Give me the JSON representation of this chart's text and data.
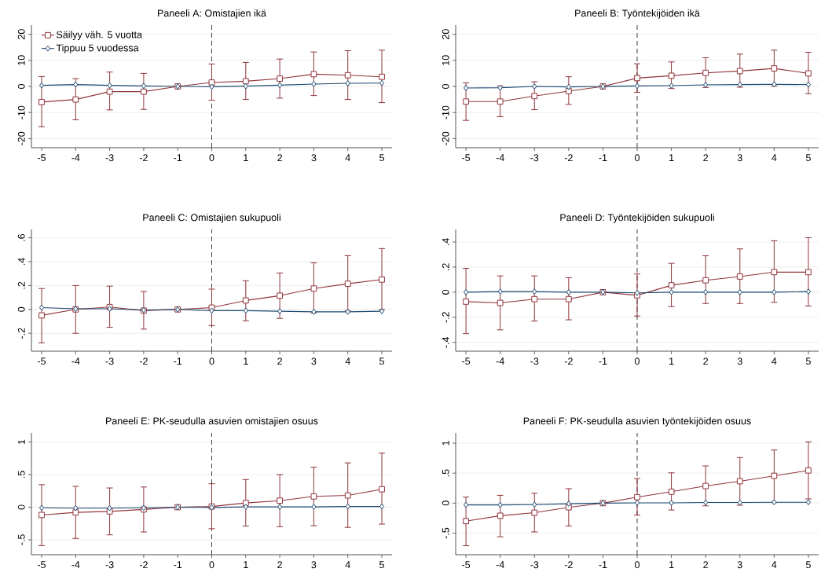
{
  "chart_data": [
    {
      "type": "line",
      "title": "Paneeli A: Omistajien ikä",
      "x": [
        -5,
        -4,
        -3,
        -2,
        -1,
        0,
        1,
        2,
        3,
        4,
        5
      ],
      "xlim": [
        -5.3,
        5.3
      ],
      "xticks": [
        -5,
        -4,
        -3,
        -2,
        -1,
        0,
        1,
        2,
        3,
        4,
        5
      ],
      "ylim": [
        -23.5,
        23.5
      ],
      "yticks": [
        -20,
        -10,
        0,
        10,
        20
      ],
      "grid": "y",
      "legend": "top left",
      "ref_lines": [
        {
          "axis": "x",
          "value": 0,
          "color": "#404040",
          "line_style": "dashed"
        }
      ],
      "series": [
        {
          "name": "Säilyy väh. 5 vuotta",
          "color": "#90353b",
          "marker": "square",
          "values": [
            -6,
            -5,
            -2,
            -2,
            0,
            1.5,
            2,
            3,
            4.7,
            4.3,
            3.7
          ],
          "errors": [
            [
              -15.5,
              3.8
            ],
            [
              -12.8,
              3
            ],
            [
              -9,
              5.5
            ],
            [
              -8.8,
              5
            ],
            null,
            [
              -5.3,
              8.6
            ],
            [
              -5,
              9.2
            ],
            [
              -4.5,
              10.5
            ],
            [
              -3.5,
              13.2
            ],
            [
              -5,
              13.7
            ],
            [
              -6.2,
              13.9
            ]
          ]
        },
        {
          "name": "Tippuu 5 vuodessa",
          "color": "#1a476f",
          "marker": "diamond",
          "values": [
            0.4,
            0.7,
            0.4,
            0.2,
            0,
            -0.1,
            0.1,
            0.5,
            0.9,
            1.2,
            1.3
          ]
        }
      ]
    },
    {
      "type": "line",
      "title": "Paneeli B: Työntekijöiden ikä",
      "x": [
        -5,
        -4,
        -3,
        -2,
        -1,
        0,
        1,
        2,
        3,
        4,
        5
      ],
      "xlim": [
        -5.3,
        5.3
      ],
      "xticks": [
        -5,
        -4,
        -3,
        -2,
        -1,
        0,
        1,
        2,
        3,
        4,
        5
      ],
      "ylim": [
        -23.5,
        23.5
      ],
      "yticks": [
        -20,
        -10,
        0,
        10,
        20
      ],
      "grid": "y",
      "ref_lines": [
        {
          "axis": "x",
          "value": 0,
          "color": "#404040",
          "line_style": "dashed"
        }
      ],
      "series": [
        {
          "color": "#90353b",
          "marker": "square",
          "values": [
            -5.8,
            -5.8,
            -3.7,
            -1.8,
            0,
            3.2,
            4.1,
            5.2,
            5.9,
            6.9,
            5
          ],
          "errors": [
            [
              -13,
              1.4
            ],
            [
              -11.6,
              0.2
            ],
            [
              -8.9,
              1.8
            ],
            [
              -6.9,
              3.7
            ],
            null,
            [
              -2.3,
              8.7
            ],
            [
              -0.8,
              9.4
            ],
            [
              -0.4,
              11
            ],
            [
              -0.3,
              12.4
            ],
            [
              0.1,
              13.9
            ],
            [
              -2.8,
              13.1
            ]
          ]
        },
        {
          "color": "#1a476f",
          "marker": "diamond",
          "values": [
            -0.6,
            -0.5,
            0,
            -0.2,
            0,
            0.2,
            0.3,
            0.6,
            0.7,
            0.8,
            0.7
          ]
        }
      ]
    },
    {
      "type": "line",
      "title": "Paneeli C: Omistajien sukupuoli",
      "x": [
        -5,
        -4,
        -3,
        -2,
        -1,
        0,
        1,
        2,
        3,
        4,
        5
      ],
      "xlim": [
        -5.3,
        5.3
      ],
      "xticks": [
        -5,
        -4,
        -3,
        -2,
        -1,
        0,
        1,
        2,
        3,
        4,
        5
      ],
      "ylim": [
        -0.35,
        0.67
      ],
      "yticks": [
        {
          "value": -0.2,
          "label": "-.2"
        },
        0,
        {
          "value": 0.2,
          "label": ".2"
        },
        {
          "value": 0.4,
          "label": ".4"
        },
        {
          "value": 0.6,
          "label": ".6"
        }
      ],
      "grid": "y",
      "ref_lines": [
        {
          "axis": "x",
          "value": 0,
          "color": "#404040",
          "line_style": "dashed"
        }
      ],
      "series": [
        {
          "color": "#90353b",
          "marker": "square",
          "values": [
            -0.05,
            0,
            0.02,
            -0.01,
            0,
            0.015,
            0.075,
            0.115,
            0.175,
            0.215,
            0.25
          ],
          "errors": [
            [
              -0.28,
              0.175
            ],
            [
              -0.2,
              0.2
            ],
            [
              -0.15,
              0.195
            ],
            [
              -0.165,
              0.15
            ],
            null,
            [
              -0.135,
              0.17
            ],
            [
              -0.095,
              0.24
            ],
            [
              -0.075,
              0.305
            ],
            [
              -0.03,
              0.39
            ],
            [
              -0.01,
              0.45
            ],
            [
              0,
              0.51
            ]
          ]
        },
        {
          "color": "#1a476f",
          "marker": "diamond",
          "values": [
            0.015,
            0.005,
            0.005,
            -0.005,
            0,
            -0.01,
            -0.01,
            -0.015,
            -0.02,
            -0.02,
            -0.015
          ]
        }
      ]
    },
    {
      "type": "line",
      "title": "Paneeli D: Työntekijöiden sukupuoli",
      "x": [
        -5,
        -4,
        -3,
        -2,
        -1,
        0,
        1,
        2,
        3,
        4,
        5
      ],
      "xlim": [
        -5.3,
        5.3
      ],
      "xticks": [
        -5,
        -4,
        -3,
        -2,
        -1,
        0,
        1,
        2,
        3,
        4,
        5
      ],
      "ylim": [
        -0.47,
        0.5
      ],
      "yticks": [
        {
          "value": -0.4,
          "label": "-.4"
        },
        {
          "value": -0.2,
          "label": "-.2"
        },
        0,
        {
          "value": 0.2,
          "label": ".2"
        },
        {
          "value": 0.4,
          "label": ".4"
        }
      ],
      "grid": "y",
      "ref_lines": [
        {
          "axis": "x",
          "value": 0,
          "color": "#404040",
          "line_style": "dashed"
        }
      ],
      "series": [
        {
          "color": "#90353b",
          "marker": "square",
          "values": [
            -0.075,
            -0.085,
            -0.055,
            -0.055,
            0,
            -0.025,
            0.055,
            0.095,
            0.125,
            0.16,
            0.16
          ],
          "errors": [
            [
              -0.33,
              0.19
            ],
            [
              -0.3,
              0.13
            ],
            [
              -0.23,
              0.13
            ],
            [
              -0.22,
              0.115
            ],
            null,
            [
              -0.19,
              0.145
            ],
            [
              -0.115,
              0.23
            ],
            [
              -0.09,
              0.29
            ],
            [
              -0.09,
              0.345
            ],
            [
              -0.08,
              0.41
            ],
            [
              -0.11,
              0.435
            ]
          ]
        },
        {
          "color": "#1a476f",
          "marker": "diamond",
          "values": [
            0,
            0.005,
            0.005,
            0,
            0,
            -0.005,
            0,
            0,
            0,
            0,
            0.005
          ]
        }
      ]
    },
    {
      "type": "line",
      "title": "Paneeli E: PK-seudulla asuvien omistajien osuus",
      "x": [
        -5,
        -4,
        -3,
        -2,
        -1,
        0,
        1,
        2,
        3,
        4,
        5
      ],
      "xlim": [
        -5.3,
        5.3
      ],
      "xticks": [
        -5,
        -4,
        -3,
        -2,
        -1,
        0,
        1,
        2,
        3,
        4,
        5
      ],
      "ylim": [
        -0.73,
        1.14
      ],
      "yticks": [
        {
          "value": -0.5,
          "label": "-.5"
        },
        0,
        {
          "value": 0.5,
          "label": ".5"
        },
        1
      ],
      "grid": "y",
      "ref_lines": [
        {
          "axis": "x",
          "value": 0,
          "color": "#404040",
          "line_style": "dashed"
        }
      ],
      "series": [
        {
          "color": "#90353b",
          "marker": "square",
          "values": [
            -0.12,
            -0.08,
            -0.065,
            -0.035,
            0,
            0.01,
            0.065,
            0.1,
            0.165,
            0.18,
            0.275
          ],
          "errors": [
            [
              -0.59,
              0.345
            ],
            [
              -0.48,
              0.32
            ],
            [
              -0.425,
              0.295
            ],
            [
              -0.38,
              0.31
            ],
            null,
            [
              -0.33,
              0.36
            ],
            [
              -0.29,
              0.425
            ],
            [
              -0.3,
              0.5
            ],
            [
              -0.285,
              0.615
            ],
            [
              -0.31,
              0.68
            ],
            [
              -0.26,
              0.83
            ]
          ]
        },
        {
          "color": "#1a476f",
          "marker": "diamond",
          "values": [
            -0.01,
            -0.015,
            -0.015,
            -0.01,
            0,
            -0.005,
            0.005,
            0.005,
            0.005,
            0.01,
            0.01
          ]
        }
      ]
    },
    {
      "type": "line",
      "title": "Paneeli F: PK-seudulla asuvien työntekijöiden osuus",
      "x": [
        -5,
        -4,
        -3,
        -2,
        -1,
        0,
        1,
        2,
        3,
        4,
        5
      ],
      "xlim": [
        -5.3,
        5.3
      ],
      "xticks": [
        -5,
        -4,
        -3,
        -2,
        -1,
        0,
        1,
        2,
        3,
        4,
        5
      ],
      "ylim": [
        -0.86,
        1.17
      ],
      "yticks": [
        {
          "value": -0.5,
          "label": "-.5"
        },
        0,
        {
          "value": 0.5,
          "label": ".5"
        },
        1
      ],
      "grid": "y",
      "ref_lines": [
        {
          "axis": "x",
          "value": 0,
          "color": "#404040",
          "line_style": "dashed"
        }
      ],
      "series": [
        {
          "color": "#90353b",
          "marker": "square",
          "values": [
            -0.3,
            -0.21,
            -0.16,
            -0.07,
            0,
            0.1,
            0.19,
            0.285,
            0.365,
            0.455,
            0.545
          ],
          "errors": [
            [
              -0.71,
              0.1
            ],
            [
              -0.56,
              0.13
            ],
            [
              -0.48,
              0.165
            ],
            [
              -0.38,
              0.24
            ],
            null,
            [
              -0.2,
              0.41
            ],
            [
              -0.115,
              0.505
            ],
            [
              -0.045,
              0.62
            ],
            [
              -0.035,
              0.76
            ],
            [
              0.01,
              0.885
            ],
            [
              0.07,
              1.02
            ]
          ]
        },
        {
          "color": "#1a476f",
          "marker": "diamond",
          "values": [
            -0.03,
            -0.03,
            -0.025,
            -0.01,
            0,
            0.005,
            0.005,
            0.01,
            0.01,
            0.015,
            0.015
          ]
        }
      ]
    }
  ]
}
